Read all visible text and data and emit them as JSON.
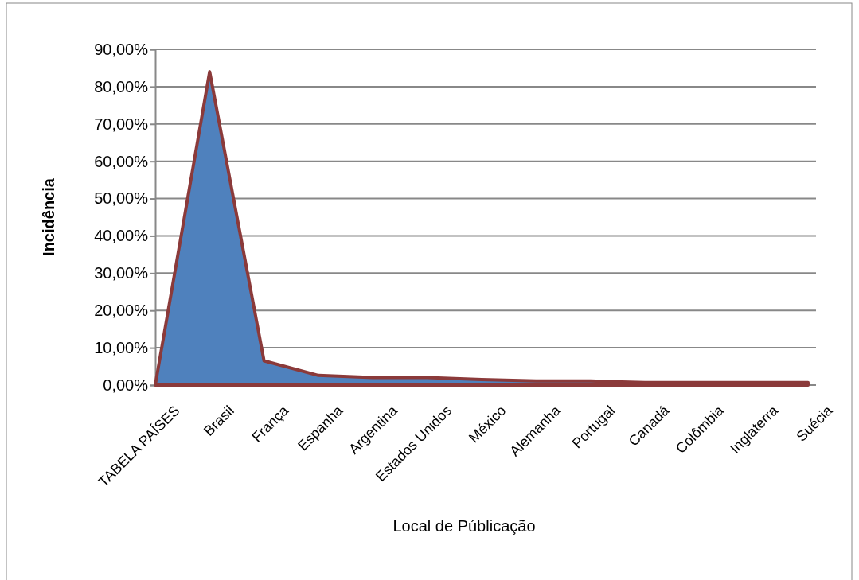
{
  "chart_data": {
    "type": "area",
    "xlabel": "Local de Públicação",
    "ylabel": "Incidência",
    "categories": [
      "TABELA PAÍSES",
      "Brasil",
      "França",
      "Espanha",
      "Argentina",
      "Estados Unidos",
      "México",
      "Alemanha",
      "Portugal",
      "Canadá",
      "Colômbia",
      "Inglaterra",
      "Suécia"
    ],
    "series": [
      {
        "color": "#4f81bd",
        "values": [
          0,
          84,
          6.5,
          2.6,
          2,
          2,
          1.5,
          1.1,
          1.1,
          0.7,
          0.7,
          0.7,
          0.7
        ]
      }
    ],
    "ylim": [
      0,
      90
    ],
    "yticks": [
      {
        "value": 0,
        "label": "0,00%"
      },
      {
        "value": 10,
        "label": "10,00%"
      },
      {
        "value": 20,
        "label": "20,00%"
      },
      {
        "value": 30,
        "label": "30,00%"
      },
      {
        "value": 40,
        "label": "40,00%"
      },
      {
        "value": 50,
        "label": "50,00%"
      },
      {
        "value": 60,
        "label": "60,00%"
      },
      {
        "value": 70,
        "label": "70,00%"
      },
      {
        "value": 80,
        "label": "80,00%"
      },
      {
        "value": 90,
        "label": "90,00%"
      }
    ],
    "grid": "y"
  }
}
